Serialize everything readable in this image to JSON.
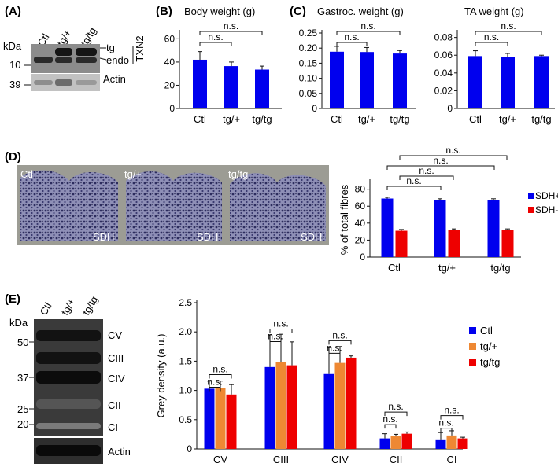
{
  "panels": {
    "A": "(A)",
    "B": "(B)",
    "C": "(C)",
    "D": "(D)",
    "E": "(E)"
  },
  "colors": {
    "blue": "#0000ee",
    "orange": "#ee8833",
    "red": "#ee0000",
    "blot": "#3a3a3a",
    "micro": "#9c9c94"
  },
  "ns_label": "n.s.",
  "panel_a": {
    "kda": "kDa",
    "lanes": [
      "Ctl",
      "tg/+",
      "tg/tg"
    ],
    "markers": [
      "10",
      "39"
    ],
    "band_labels": [
      "tg",
      "endo"
    ],
    "protein": "TXN2",
    "loading": "Actin"
  },
  "panel_d_images": {
    "labels": [
      "Ctl",
      "tg/+",
      "tg/tg"
    ],
    "stain": "SDH"
  },
  "panel_e_blot": {
    "kda": "kDa",
    "lanes": [
      "Ctl",
      "tg/+",
      "tg/tg"
    ],
    "markers": [
      "50",
      "37",
      "25",
      "20"
    ],
    "complexes": [
      "CV",
      "CIII",
      "CIV",
      "CII",
      "CI"
    ],
    "loading": "Actin"
  },
  "chart_data": [
    {
      "id": "body",
      "type": "bar",
      "title": "Body weight (g)",
      "categories": [
        "Ctl",
        "tg/+",
        "tg/tg"
      ],
      "values": [
        42,
        36.5,
        33.5
      ],
      "errors": [
        7,
        3.5,
        3
      ],
      "yticks": [
        "0",
        "20",
        "40",
        "60"
      ],
      "ylim": [
        0,
        65
      ],
      "significance": [
        "n.s.",
        "n.s."
      ]
    },
    {
      "id": "gastroc",
      "type": "bar",
      "title": "Gastroc. weight (g)",
      "categories": [
        "Ctl",
        "tg/+",
        "tg/tg"
      ],
      "values": [
        0.188,
        0.187,
        0.182
      ],
      "errors": [
        0.018,
        0.015,
        0.01
      ],
      "yticks": [
        "0",
        "0.05",
        "0.10",
        "0.15",
        "0.20",
        "0.25"
      ],
      "ylim": [
        0,
        0.25
      ],
      "significance": [
        "n.s.",
        "n.s."
      ]
    },
    {
      "id": "ta",
      "type": "bar",
      "title": "TA weight (g)",
      "categories": [
        "Ctl",
        "tg/+",
        "tg/tg"
      ],
      "values": [
        0.059,
        0.058,
        0.059
      ],
      "errors": [
        0.006,
        0.004,
        0.001
      ],
      "yticks": [
        "0",
        "0.02",
        "0.04",
        "0.06",
        "0.08"
      ],
      "ylim": [
        0,
        0.085
      ],
      "significance": [
        "n.s.",
        "n.s."
      ]
    },
    {
      "id": "sdh",
      "type": "bar",
      "categories": [
        "Ctl",
        "tg/+",
        "tg/tg"
      ],
      "ylabel": "% of total fibres",
      "yticks": [
        "0",
        "20",
        "40",
        "60",
        "80"
      ],
      "ylim": [
        0,
        88
      ],
      "series": [
        {
          "name": "SDH+",
          "color": "#0000ee",
          "values": [
            69,
            67.5,
            67.5
          ],
          "errors": [
            1.5,
            1.2,
            1.2
          ]
        },
        {
          "name": "SDH-",
          "color": "#ee0000",
          "values": [
            31,
            32,
            32
          ],
          "errors": [
            1.5,
            1.2,
            1.2
          ]
        }
      ],
      "significance": [
        "n.s.",
        "n.s.",
        "n.s.",
        "n.s."
      ]
    },
    {
      "id": "grey",
      "type": "bar",
      "categories": [
        "CV",
        "CIII",
        "CIV",
        "CII",
        "CI"
      ],
      "ylabel": "Grey density (a.u.)",
      "yticks": [
        "0",
        "0.5",
        "1.0",
        "1.5",
        "2.0",
        "2.5"
      ],
      "ylim": [
        0,
        2.5
      ],
      "series": [
        {
          "name": "Ctl",
          "color": "#0000ee",
          "values": [
            1.03,
            1.4,
            1.28,
            0.18,
            0.15
          ],
          "errors": [
            0.13,
            0.55,
            0.45,
            0.08,
            0.13
          ]
        },
        {
          "name": "tg/+",
          "color": "#ee8833",
          "values": [
            1.04,
            1.48,
            1.47,
            0.22,
            0.23
          ],
          "errors": [
            0.12,
            0.48,
            0.28,
            0.03,
            0.08
          ]
        },
        {
          "name": "tg/tg",
          "color": "#ee0000",
          "values": [
            0.93,
            1.43,
            1.56,
            0.26,
            0.18
          ],
          "errors": [
            0.17,
            0.4,
            0.03,
            0.03,
            0.02
          ]
        }
      ],
      "significance": [
        "n.s.",
        "n.s."
      ]
    }
  ]
}
